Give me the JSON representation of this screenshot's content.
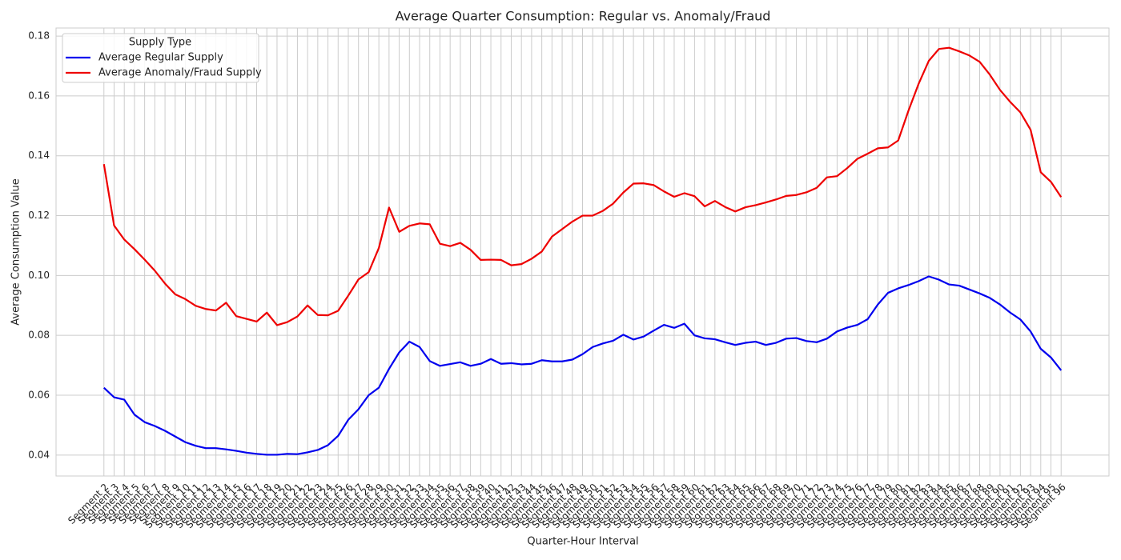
{
  "chart_data": {
    "type": "line",
    "title": "Average Quarter Consumption: Regular vs. Anomaly/Fraud",
    "xlabel": "Quarter-Hour Interval",
    "ylabel": "Average Consumption Value",
    "legend_title": "Supply Type",
    "legend_position": "upper left",
    "grid": true,
    "categories": [
      "Segment 2",
      "Segment 3",
      "Segment 4",
      "Segment 5",
      "Segment 6",
      "Segment 7",
      "Segment 8",
      "Segment 9",
      "Segment 10",
      "Segment 11",
      "Segment 12",
      "Segment 13",
      "Segment 14",
      "Segment 15",
      "Segment 16",
      "Segment 17",
      "Segment 18",
      "Segment 19",
      "Segment 20",
      "Segment 21",
      "Segment 22",
      "Segment 23",
      "Segment 24",
      "Segment 25",
      "Segment 26",
      "Segment 27",
      "Segment 28",
      "Segment 29",
      "Segment 30",
      "Segment 31",
      "Segment 32",
      "Segment 33",
      "Segment 34",
      "Segment 35",
      "Segment 36",
      "Segment 37",
      "Segment 38",
      "Segment 39",
      "Segment 40",
      "Segment 41",
      "Segment 42",
      "Segment 43",
      "Segment 44",
      "Segment 45",
      "Segment 46",
      "Segment 47",
      "Segment 48",
      "Segment 49",
      "Segment 50",
      "Segment 51",
      "Segment 52",
      "Segment 53",
      "Segment 54",
      "Segment 55",
      "Segment 56",
      "Segment 57",
      "Segment 58",
      "Segment 59",
      "Segment 60",
      "Segment 61",
      "Segment 62",
      "Segment 63",
      "Segment 64",
      "Segment 65",
      "Segment 66",
      "Segment 67",
      "Segment 68",
      "Segment 69",
      "Segment 70",
      "Segment 71",
      "Segment 72",
      "Segment 73",
      "Segment 74",
      "Segment 75",
      "Segment 76",
      "Segment 77",
      "Segment 78",
      "Segment 79",
      "Segment 80",
      "Segment 81",
      "Segment 82",
      "Segment 83",
      "Segment 84",
      "Segment 85",
      "Segment 86",
      "Segment 87",
      "Segment 88",
      "Segment 89",
      "Segment 90",
      "Segment 91",
      "Segment 92",
      "Segment 93",
      "Segment 94",
      "Segment 95",
      "Segment 96"
    ],
    "series": [
      {
        "name": "Average Regular Supply",
        "color": "#0000ee",
        "values": [
          0.0625,
          0.0593,
          0.0585,
          0.0535,
          0.051,
          0.0497,
          0.0481,
          0.0462,
          0.0443,
          0.0431,
          0.0423,
          0.0423,
          0.0419,
          0.0414,
          0.0408,
          0.0404,
          0.0401,
          0.0401,
          0.0404,
          0.0403,
          0.0409,
          0.0417,
          0.0433,
          0.0464,
          0.0518,
          0.0553,
          0.06,
          0.0625,
          0.0688,
          0.0743,
          0.0779,
          0.0761,
          0.0714,
          0.0698,
          0.0704,
          0.071,
          0.0698,
          0.0705,
          0.0721,
          0.0705,
          0.0707,
          0.0703,
          0.0705,
          0.0717,
          0.0713,
          0.0713,
          0.0719,
          0.0737,
          0.0761,
          0.0773,
          0.0782,
          0.0802,
          0.0786,
          0.0796,
          0.0816,
          0.0835,
          0.0825,
          0.0839,
          0.08,
          0.079,
          0.0787,
          0.0777,
          0.0768,
          0.0775,
          0.0779,
          0.0768,
          0.0775,
          0.0789,
          0.0791,
          0.0781,
          0.0777,
          0.0789,
          0.0813,
          0.0826,
          0.0835,
          0.0854,
          0.0903,
          0.0942,
          0.0957,
          0.0968,
          0.0981,
          0.0997,
          0.0986,
          0.097,
          0.0966,
          0.0953,
          0.094,
          0.0925,
          0.0903,
          0.0876,
          0.0853,
          0.0813,
          0.0755,
          0.0726,
          0.0683
        ]
      },
      {
        "name": "Average Anomaly/Fraud Supply",
        "color": "#ee0000",
        "values": [
          0.1372,
          0.1167,
          0.112,
          0.1088,
          0.1053,
          0.1016,
          0.0973,
          0.0937,
          0.0921,
          0.0899,
          0.0888,
          0.0883,
          0.0909,
          0.0864,
          0.0855,
          0.0846,
          0.0876,
          0.0834,
          0.0844,
          0.0863,
          0.09,
          0.0868,
          0.0867,
          0.0882,
          0.0933,
          0.0987,
          0.1011,
          0.1092,
          0.1227,
          0.1146,
          0.1166,
          0.1174,
          0.1171,
          0.1106,
          0.1098,
          0.1109,
          0.1086,
          0.1052,
          0.1053,
          0.1052,
          0.1034,
          0.1038,
          0.1056,
          0.108,
          0.113,
          0.1155,
          0.118,
          0.12,
          0.12,
          0.1216,
          0.124,
          0.1277,
          0.1307,
          0.1308,
          0.1302,
          0.1281,
          0.1263,
          0.1275,
          0.1265,
          0.1231,
          0.1249,
          0.1229,
          0.1214,
          0.1228,
          0.1235,
          0.1244,
          0.1254,
          0.1266,
          0.1269,
          0.1278,
          0.1293,
          0.1328,
          0.1332,
          0.1359,
          0.139,
          0.1407,
          0.1425,
          0.1428,
          0.1451,
          0.155,
          0.164,
          0.1717,
          0.1757,
          0.1761,
          0.1749,
          0.1735,
          0.1714,
          0.1671,
          0.162,
          0.158,
          0.1545,
          0.1487,
          0.1345,
          0.1313,
          0.1262
        ]
      }
    ],
    "ylim": [
      0.033,
      0.1827
    ],
    "yticks": [
      0.04,
      0.06,
      0.08,
      {
        "value": 0.1,
        "label": "0.10"
      },
      0.12,
      0.14,
      0.16,
      0.18
    ]
  }
}
